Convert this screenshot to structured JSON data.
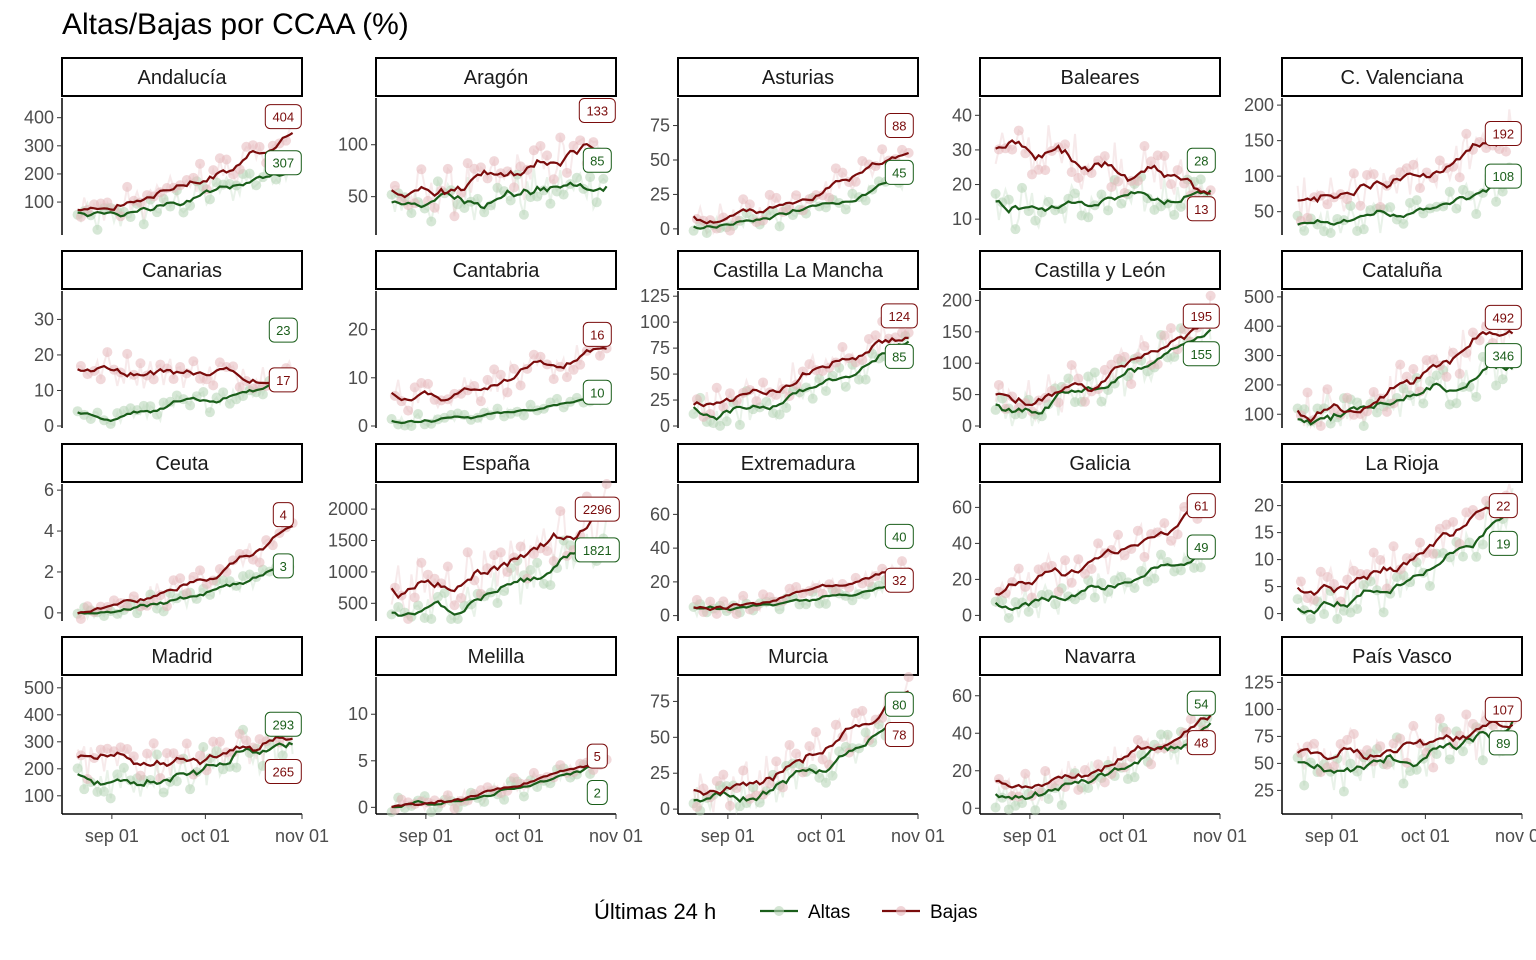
{
  "title": "Altas/Bajas por CCAA (%)",
  "colors": {
    "altas": "#1a5e1a",
    "bajas": "#7a0c0c",
    "points_altas": "#b5d3b5",
    "points_bajas": "#e6b8bc"
  },
  "legend": {
    "title": "Últimas 24 h",
    "items": [
      "Altas",
      "Bajas"
    ]
  },
  "chart_data": {
    "type": "line",
    "x_ticks": [
      "sep 01",
      "oct 01",
      "nov 01"
    ],
    "x_domain_days": [
      -16,
      61
    ],
    "panels": [
      {
        "name": "Andalucía",
        "ymin": -10,
        "ymax": 470,
        "yticks": [
          100,
          200,
          300,
          400
        ],
        "altas_start": 40,
        "altas_end": 236,
        "bajas_start": 65,
        "bajas_end": 330,
        "labels": [
          {
            "series": "bajas",
            "value": "404",
            "y": 404
          },
          {
            "series": "altas",
            "value": "307",
            "y": 240
          }
        ]
      },
      {
        "name": "Aragón",
        "ymin": 15,
        "ymax": 145,
        "yticks": [
          50,
          100
        ],
        "altas_start": 45,
        "altas_end": 64,
        "bajas_start": 50,
        "bajas_end": 100,
        "labels": [
          {
            "series": "bajas",
            "value": "133",
            "y": 133
          },
          {
            "series": "altas",
            "value": "85",
            "y": 85
          }
        ]
      },
      {
        "name": "Asturias",
        "ymin": -3,
        "ymax": 95,
        "yticks": [
          0,
          25,
          50,
          75
        ],
        "altas_start": 2,
        "altas_end": 35,
        "bajas_start": 5,
        "bajas_end": 61,
        "labels": [
          {
            "series": "bajas",
            "value": "88",
            "y": 75
          },
          {
            "series": "altas",
            "value": "45",
            "y": 41
          }
        ]
      },
      {
        "name": "Baleares",
        "ymin": 6,
        "ymax": 45,
        "yticks": [
          10,
          20,
          30,
          40
        ],
        "altas_start": 13,
        "altas_end": 18,
        "bajas_start": 30,
        "bajas_end": 19,
        "labels": [
          {
            "series": "altas",
            "value": "28",
            "y": 27
          },
          {
            "series": "bajas",
            "value": "13",
            "y": 13
          }
        ]
      },
      {
        "name": "C. Valenciana",
        "ymin": 20,
        "ymax": 210,
        "yticks": [
          50,
          100,
          150,
          200
        ],
        "altas_start": 30,
        "altas_end": 88,
        "bajas_start": 60,
        "bajas_end": 162,
        "labels": [
          {
            "series": "bajas",
            "value": "192",
            "y": 160
          },
          {
            "series": "altas",
            "value": "108",
            "y": 100
          }
        ]
      },
      {
        "name": "Canarias",
        "ymin": 0,
        "ymax": 38,
        "yticks": [
          0,
          10,
          20,
          30
        ],
        "altas_start": 2,
        "altas_end": 14,
        "bajas_start": 16,
        "bajas_end": 14,
        "labels": [
          {
            "series": "altas",
            "value": "23",
            "y": 27
          },
          {
            "series": "bajas",
            "value": "17",
            "y": 13
          }
        ]
      },
      {
        "name": "Cantabria",
        "ymin": 0,
        "ymax": 28,
        "yticks": [
          0,
          10,
          20
        ],
        "altas_start": 1,
        "altas_end": 6,
        "bajas_start": 6,
        "bajas_end": 16,
        "labels": [
          {
            "series": "bajas",
            "value": "16",
            "y": 19
          },
          {
            "series": "altas",
            "value": "10",
            "y": 7
          }
        ]
      },
      {
        "name": "Castilla La Mancha",
        "ymin": 0,
        "ymax": 130,
        "yticks": [
          0,
          25,
          50,
          75,
          100,
          125
        ],
        "altas_start": 8,
        "altas_end": 80,
        "bajas_start": 20,
        "bajas_end": 97,
        "labels": [
          {
            "series": "bajas",
            "value": "124",
            "y": 106
          },
          {
            "series": "altas",
            "value": "85",
            "y": 67
          }
        ]
      },
      {
        "name": "Castilla y León",
        "ymin": 0,
        "ymax": 215,
        "yticks": [
          0,
          50,
          100,
          150,
          200
        ],
        "altas_start": 20,
        "altas_end": 155,
        "bajas_start": 35,
        "bajas_end": 175,
        "labels": [
          {
            "series": "bajas",
            "value": "195",
            "y": 175
          },
          {
            "series": "altas",
            "value": "155",
            "y": 115
          }
        ]
      },
      {
        "name": "Cataluña",
        "ymin": 60,
        "ymax": 520,
        "yticks": [
          100,
          200,
          300,
          400,
          500
        ],
        "altas_start": 80,
        "altas_end": 295,
        "bajas_start": 100,
        "bajas_end": 405,
        "labels": [
          {
            "series": "bajas",
            "value": "492",
            "y": 430
          },
          {
            "series": "altas",
            "value": "346",
            "y": 300
          }
        ]
      },
      {
        "name": "Ceuta",
        "ymin": -0.3,
        "ymax": 6.3,
        "yticks": [
          0,
          2,
          4,
          6
        ],
        "altas_start": 0,
        "altas_end": 2.3,
        "bajas_start": 0,
        "bajas_end": 4,
        "labels": [
          {
            "series": "bajas",
            "value": "4",
            "y": 4.8
          },
          {
            "series": "altas",
            "value": "3",
            "y": 2.3
          }
        ]
      },
      {
        "name": "España",
        "ymin": 250,
        "ymax": 2400,
        "yticks": [
          500,
          1000,
          1500,
          2000
        ],
        "altas_start": 300,
        "altas_end": 1550,
        "bajas_start": 700,
        "bajas_end": 2000,
        "labels": [
          {
            "series": "bajas",
            "value": "2296",
            "y": 2000
          },
          {
            "series": "altas",
            "value": "1821",
            "y": 1350
          }
        ]
      },
      {
        "name": "Extremadura",
        "ymin": -2,
        "ymax": 78,
        "yticks": [
          0,
          20,
          40,
          60
        ],
        "altas_start": 3,
        "altas_end": 20,
        "bajas_start": 5,
        "bajas_end": 29,
        "labels": [
          {
            "series": "altas",
            "value": "40",
            "y": 47
          },
          {
            "series": "bajas",
            "value": "32",
            "y": 21
          }
        ]
      },
      {
        "name": "Galicia",
        "ymin": -2,
        "ymax": 73,
        "yticks": [
          0,
          20,
          40,
          60
        ],
        "altas_start": 5,
        "altas_end": 38,
        "bajas_start": 15,
        "bajas_end": 62,
        "labels": [
          {
            "series": "bajas",
            "value": "61",
            "y": 61
          },
          {
            "series": "altas",
            "value": "49",
            "y": 38
          }
        ]
      },
      {
        "name": "La Rioja",
        "ymin": -1,
        "ymax": 24,
        "yticks": [
          0,
          5,
          10,
          15,
          20
        ],
        "altas_start": 0,
        "altas_end": 19,
        "bajas_start": 4,
        "bajas_end": 22,
        "labels": [
          {
            "series": "bajas",
            "value": "22",
            "y": 20
          },
          {
            "series": "altas",
            "value": "19",
            "y": 13
          }
        ]
      },
      {
        "name": "Madrid",
        "ymin": 40,
        "ymax": 540,
        "yticks": [
          100,
          200,
          300,
          400,
          500
        ],
        "altas_start": 150,
        "altas_end": 300,
        "bajas_start": 220,
        "bajas_end": 290,
        "labels": [
          {
            "series": "altas",
            "value": "293",
            "y": 365
          },
          {
            "series": "bajas",
            "value": "265",
            "y": 190
          }
        ]
      },
      {
        "name": "Melilla",
        "ymin": -0.5,
        "ymax": 14,
        "yticks": [
          0,
          5,
          10
        ],
        "altas_start": 0,
        "altas_end": 5,
        "bajas_start": 0,
        "bajas_end": 5.5,
        "labels": [
          {
            "series": "bajas",
            "value": "5",
            "y": 5.5
          },
          {
            "series": "altas",
            "value": "2",
            "y": 1.6
          }
        ]
      },
      {
        "name": "Murcia",
        "ymin": -2,
        "ymax": 92,
        "yticks": [
          0,
          25,
          50,
          75
        ],
        "altas_start": 5,
        "altas_end": 60,
        "bajas_start": 10,
        "bajas_end": 80,
        "labels": [
          {
            "series": "altas",
            "value": "80",
            "y": 73
          },
          {
            "series": "bajas",
            "value": "78",
            "y": 52
          }
        ]
      },
      {
        "name": "Navarra",
        "ymin": -2,
        "ymax": 70,
        "yticks": [
          0,
          20,
          40,
          60
        ],
        "altas_start": 5,
        "altas_end": 42,
        "bajas_start": 8,
        "bajas_end": 50,
        "labels": [
          {
            "series": "altas",
            "value": "54",
            "y": 56
          },
          {
            "series": "bajas",
            "value": "48",
            "y": 35
          }
        ]
      },
      {
        "name": "País Vasco",
        "ymin": 5,
        "ymax": 130,
        "yticks": [
          25,
          50,
          75,
          100,
          125
        ],
        "altas_start": 40,
        "altas_end": 80,
        "bajas_start": 55,
        "bajas_end": 85,
        "labels": [
          {
            "series": "bajas",
            "value": "107",
            "y": 100
          },
          {
            "series": "altas",
            "value": "89",
            "y": 69
          }
        ]
      }
    ]
  }
}
